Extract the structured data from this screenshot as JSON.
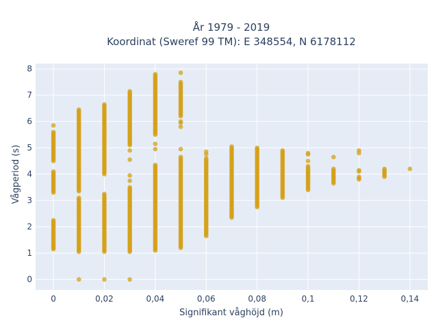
{
  "chart_data": {
    "type": "scatter",
    "title_lines": [
      "År 1979 - 2019",
      "Koordinat (Sweref 99 TM): E 348554, N 6178112"
    ],
    "xlabel": "Signifikant våghöjd (m)",
    "ylabel": "Vågperiod (s)",
    "xlim": [
      -0.007,
      0.147
    ],
    "ylim": [
      -0.4,
      8.2
    ],
    "xticks": [
      0,
      0.02,
      0.04,
      0.06,
      0.08,
      0.1,
      0.12,
      0.14
    ],
    "xtick_labels": [
      "0",
      "0,02",
      "0,04",
      "0,06",
      "0,08",
      "0,1",
      "0,12",
      "0,14"
    ],
    "yticks": [
      0,
      1,
      2,
      3,
      4,
      5,
      6,
      7,
      8
    ],
    "ytick_labels": [
      "0",
      "1",
      "2",
      "3",
      "4",
      "5",
      "6",
      "7",
      "8"
    ],
    "grid": true,
    "marker_color": "#d4a017",
    "bg_color": "#e5ecf6",
    "columns": [
      {
        "x": 0,
        "ranges": [
          [
            1.15,
            2.25
          ],
          [
            3.3,
            4.1
          ],
          [
            4.5,
            5.6
          ]
        ],
        "points": [
          5.85,
          1.2
        ]
      },
      {
        "x": 0.01,
        "ranges": [
          [
            1.05,
            3.1
          ],
          [
            3.35,
            6.45
          ]
        ],
        "points": [
          0
        ]
      },
      {
        "x": 0.02,
        "ranges": [
          [
            1.05,
            3.25
          ],
          [
            4.0,
            6.65
          ]
        ],
        "points": [
          0
        ]
      },
      {
        "x": 0.03,
        "ranges": [
          [
            1.05,
            3.5
          ],
          [
            5.1,
            7.15
          ]
        ],
        "points": [
          0,
          3.95,
          3.75,
          4.55,
          4.9
        ]
      },
      {
        "x": 0.04,
        "ranges": [
          [
            1.1,
            4.35
          ],
          [
            5.5,
            7.8
          ]
        ],
        "points": [
          4.95,
          5.15
        ]
      },
      {
        "x": 0.05,
        "ranges": [
          [
            1.2,
            4.65
          ],
          [
            6.2,
            7.5
          ]
        ],
        "points": [
          4.95,
          5.8,
          5.95,
          6.0,
          7.85
        ]
      },
      {
        "x": 0.06,
        "ranges": [
          [
            1.65,
            4.6
          ]
        ],
        "points": [
          4.85,
          4.75
        ]
      },
      {
        "x": 0.07,
        "ranges": [
          [
            2.35,
            5.05
          ]
        ],
        "points": []
      },
      {
        "x": 0.08,
        "ranges": [
          [
            2.75,
            5.0
          ]
        ],
        "points": []
      },
      {
        "x": 0.09,
        "ranges": [
          [
            3.1,
            4.9
          ]
        ],
        "points": []
      },
      {
        "x": 0.1,
        "ranges": [
          [
            3.4,
            4.3
          ]
        ],
        "points": [
          4.5,
          4.75,
          4.8
        ]
      },
      {
        "x": 0.11,
        "ranges": [
          [
            3.65,
            4.2
          ]
        ],
        "points": [
          4.65
        ]
      },
      {
        "x": 0.12,
        "ranges": [
          [
            3.8,
            3.9
          ]
        ],
        "points": [
          4.15,
          4.1,
          4.8,
          4.9
        ]
      },
      {
        "x": 0.13,
        "ranges": [
          [
            3.9,
            4.2
          ]
        ],
        "points": []
      },
      {
        "x": 0.14,
        "ranges": [],
        "points": [
          4.2
        ]
      }
    ]
  }
}
